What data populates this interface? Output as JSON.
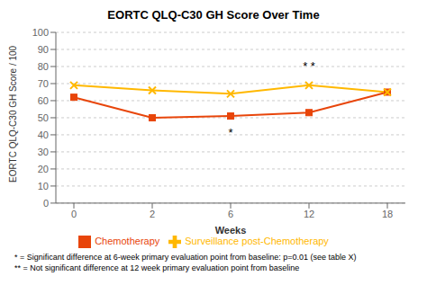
{
  "chart_data": {
    "type": "line",
    "title": "EORTC QLQ-C30 GH Score Over Time",
    "x_label": "Weeks",
    "y_label": "EORTC QLQ-C30 GH Score / 100",
    "categories": [
      0,
      2,
      6,
      12,
      18
    ],
    "series": [
      {
        "name": "Chemotherapy",
        "color": "#E8450A",
        "marker": "square",
        "values": [
          62,
          50,
          51,
          53,
          65
        ]
      },
      {
        "name": "Surveillance post-Chemotherapy",
        "color": "#FFB800",
        "marker": "x",
        "values": [
          69,
          66,
          64,
          69,
          65
        ]
      }
    ],
    "ylim": [
      0,
      100
    ],
    "yticks": [
      0,
      10,
      20,
      30,
      40,
      50,
      60,
      70,
      80,
      90,
      100
    ],
    "grid": true,
    "legend": "bottom",
    "annotations": [
      {
        "text": "*",
        "x": 6,
        "y": 44,
        "position": "below"
      },
      {
        "text": "* *",
        "x": 12,
        "y": 78,
        "position": "above"
      }
    ],
    "footnotes": [
      "* = Significant difference at 6-week primary evaluation point from baseline: p=0.01 (see table X)",
      "** = Not significant difference at 12 week primary evaluation point from baseline"
    ]
  }
}
